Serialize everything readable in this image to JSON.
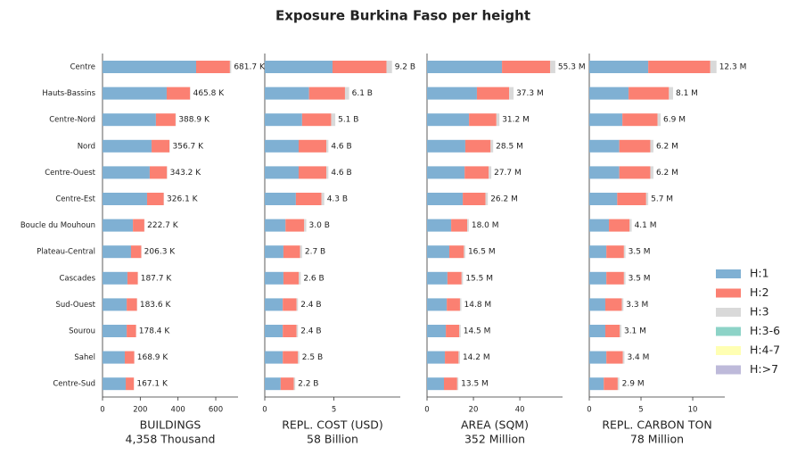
{
  "chart_data": {
    "type": "bar",
    "orientation": "horizontal",
    "title": "Exposure Burkina Faso per height",
    "categories": [
      "Centre",
      "Hauts-Bassins",
      "Centre-Nord",
      "Nord",
      "Centre-Ouest",
      "Centre-Est",
      "Boucle du Mouhoun",
      "Plateau-Central",
      "Cascades",
      "Sud-Ouest",
      "Sourou",
      "Sahel",
      "Centre-Sud"
    ],
    "series": [
      {
        "name": "H:1",
        "color": "#7fb0d3"
      },
      {
        "name": "H:2",
        "color": "#fb8072"
      },
      {
        "name": "H:3",
        "color": "#d9d9d9"
      },
      {
        "name": "H:3-6",
        "color": "#8dd3c7"
      },
      {
        "name": "H:4-7",
        "color": "#ffffb3"
      },
      {
        "name": "H:>7",
        "color": "#bebada"
      }
    ],
    "panels": [
      {
        "xlabel": "BUILDINGS",
        "xsublabel": "4,358 Thousand",
        "xlim": [
          0,
          718
        ],
        "xticks": [
          0,
          200,
          400,
          600
        ],
        "segments": [
          [
            496,
            340,
            283,
            260,
            250,
            236,
            161,
            151,
            132,
            128,
            128,
            118,
            123
          ],
          [
            179,
            124,
            104,
            95,
            91.5,
            88.5,
            60.6,
            54.3,
            54.8,
            54.7,
            49.5,
            50,
            43.3
          ],
          [
            6.7,
            1.8,
            1.9,
            1.7,
            1.7,
            1.6,
            1.1,
            1,
            0.9,
            0.9,
            0.9,
            0.9,
            0.8
          ]
        ],
        "totals": [
          681.7,
          465.8,
          388.9,
          356.7,
          343.2,
          326.1,
          222.7,
          206.3,
          187.7,
          183.6,
          178.4,
          168.9,
          167.1
        ],
        "total_labels": [
          "681.7 K",
          "465.8 K",
          "388.9 K",
          "356.7 K",
          "343.2 K",
          "326.1 K",
          "222.7 K",
          "206.3 K",
          "187.7 K",
          "183.6 K",
          "178.4 K",
          "168.9 K",
          "167.1 K"
        ]
      },
      {
        "xlabel": "REPL. COST (USD)",
        "xsublabel": "58 Billion",
        "xlim": [
          0,
          9.8
        ],
        "xticks": [
          0,
          5
        ],
        "segments": [
          [
            4.9,
            3.2,
            2.7,
            2.45,
            2.45,
            2.25,
            1.5,
            1.35,
            1.35,
            1.3,
            1.3,
            1.3,
            1.15
          ],
          [
            3.9,
            2.6,
            2.1,
            2.0,
            2.0,
            1.85,
            1.35,
            1.2,
            1.1,
            1.0,
            1.0,
            1.1,
            0.95
          ],
          [
            0.4,
            0.3,
            0.3,
            0.15,
            0.15,
            0.2,
            0.15,
            0.15,
            0.15,
            0.1,
            0.1,
            0.1,
            0.1
          ]
        ],
        "totals": [
          9.2,
          6.1,
          5.1,
          4.6,
          4.6,
          4.3,
          3.0,
          2.7,
          2.6,
          2.4,
          2.4,
          2.5,
          2.2
        ],
        "total_labels": [
          "9.2 B",
          "6.1 B",
          "5.1 B",
          "4.6 B",
          "4.6 B",
          "4.3 B",
          "3.0 B",
          "2.7 B",
          "2.6 B",
          "2.4 B",
          "2.4 B",
          "2.5 B",
          "2.2 B"
        ]
      },
      {
        "xlabel": "AREA (SQM)",
        "xsublabel": "352 Million",
        "xlim": [
          0,
          58.4
        ],
        "xticks": [
          0,
          20,
          40
        ],
        "segments": [
          [
            32.3,
            21.5,
            18.1,
            16.5,
            16.2,
            15.4,
            10.4,
            9.6,
            8.8,
            8.5,
            8.1,
            7.7,
            7.3
          ],
          [
            20.8,
            13.9,
            11.8,
            10.9,
            10.4,
            9.8,
            6.9,
            6.3,
            6.1,
            5.7,
            5.8,
            5.9,
            5.7
          ],
          [
            2.2,
            1.9,
            1.3,
            1.1,
            1.1,
            1.0,
            0.7,
            0.6,
            0.6,
            0.6,
            0.6,
            0.6,
            0.5
          ]
        ],
        "totals": [
          55.3,
          37.3,
          31.2,
          28.5,
          27.7,
          26.2,
          18.0,
          16.5,
          15.5,
          14.8,
          14.5,
          14.2,
          13.5
        ],
        "total_labels": [
          "55.3 M",
          "37.3 M",
          "31.2 M",
          "28.5 M",
          "27.7 M",
          "26.2 M",
          "18.0 M",
          "16.5 M",
          "15.5 M",
          "14.8 M",
          "14.5 M",
          "14.2 M",
          "13.5 M"
        ]
      },
      {
        "xlabel": "REPL. CARBON TON",
        "xsublabel": "78 Million",
        "xlim": [
          0,
          13.1
        ],
        "xticks": [
          0,
          5,
          10
        ],
        "segments": [
          [
            5.7,
            3.8,
            3.2,
            2.9,
            2.9,
            2.7,
            1.9,
            1.65,
            1.65,
            1.55,
            1.55,
            1.65,
            1.4
          ],
          [
            6.0,
            3.9,
            3.4,
            3.0,
            3.0,
            2.8,
            2.0,
            1.7,
            1.7,
            1.6,
            1.4,
            1.6,
            1.35
          ],
          [
            0.6,
            0.4,
            0.3,
            0.3,
            0.3,
            0.2,
            0.2,
            0.15,
            0.15,
            0.15,
            0.15,
            0.15,
            0.15
          ]
        ],
        "totals": [
          12.3,
          8.1,
          6.9,
          6.2,
          6.2,
          5.7,
          4.1,
          3.5,
          3.5,
          3.3,
          3.1,
          3.4,
          2.9
        ],
        "total_labels": [
          "12.3 M",
          "8.1 M",
          "6.9 M",
          "6.2 M",
          "6.2 M",
          "5.7 M",
          "4.1 M",
          "3.5 M",
          "3.5 M",
          "3.3 M",
          "3.1 M",
          "3.4 M",
          "2.9 M"
        ]
      }
    ]
  }
}
